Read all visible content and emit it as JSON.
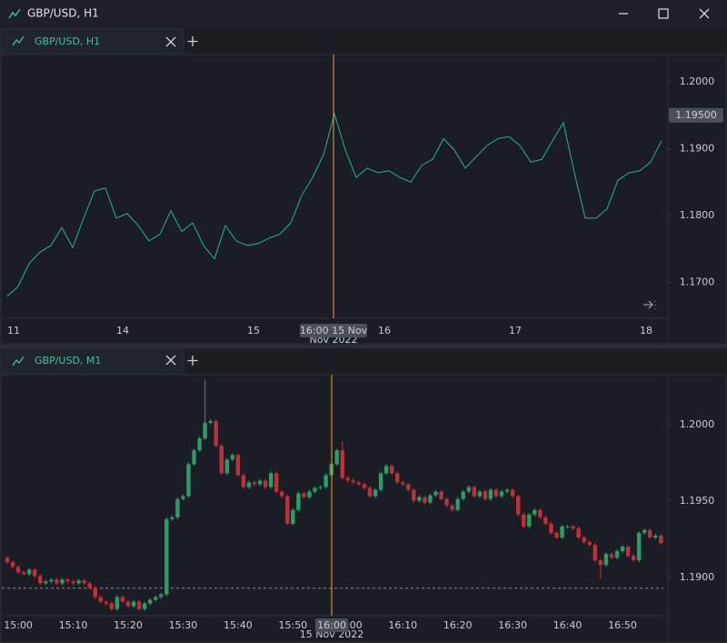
{
  "window": {
    "title": "GBP/USD, H1"
  },
  "tabs": [
    {
      "label": "GBP/USD, H1"
    },
    {
      "label": "GBP/USD, M1"
    }
  ],
  "chart_data": [
    {
      "type": "line",
      "categories": [
        "11",
        null,
        null,
        null,
        null,
        null,
        null,
        null,
        null,
        null,
        "14",
        null,
        null,
        null,
        null,
        null,
        null,
        null,
        null,
        null,
        null,
        null,
        "15",
        null,
        null,
        null,
        null,
        null,
        null,
        null,
        null,
        null,
        null,
        null,
        "16",
        null,
        null,
        null,
        null,
        null,
        null,
        null,
        null,
        null,
        null,
        null,
        "17",
        null,
        null,
        null,
        null,
        null,
        null,
        null,
        null,
        null,
        null,
        null,
        "18",
        null,
        null
      ],
      "values": [
        1.1679,
        1.1694,
        1.1728,
        1.1745,
        1.1755,
        1.1782,
        1.1752,
        1.1796,
        1.1837,
        1.1841,
        1.1796,
        1.1803,
        1.1785,
        1.1762,
        1.1772,
        1.1807,
        1.1776,
        1.1789,
        1.1755,
        1.1735,
        1.1785,
        1.1762,
        1.1755,
        1.1758,
        1.1766,
        1.1772,
        1.1789,
        1.183,
        1.1857,
        1.1891,
        1.1952,
        1.1898,
        1.1857,
        1.1871,
        1.1864,
        1.1867,
        1.1857,
        1.185,
        1.1875,
        1.1884,
        1.1915,
        1.1898,
        1.1871,
        1.1888,
        1.1905,
        1.1915,
        1.1918,
        1.1905,
        1.188,
        1.1884,
        1.1912,
        1.1939,
        1.1864,
        1.1796,
        1.1796,
        1.181,
        1.1853,
        1.1864,
        1.1867,
        1.188,
        1.1912
      ],
      "color": "#2bb38a",
      "ylim": [
        1.1646,
        1.2041
      ],
      "yticks": [
        {
          "value": 1.2,
          "label": "1.2000"
        },
        {
          "value": 1.19,
          "label": "1.1900"
        },
        {
          "value": 1.18,
          "label": "1.1800"
        },
        {
          "value": 1.17,
          "label": "1.1700"
        }
      ],
      "crosshair": {
        "label": "16:00 15 Nov",
        "sublabel": "Nov 2022",
        "price": {
          "value": 1.195,
          "label": "1.19500"
        }
      }
    },
    {
      "type": "candlestick",
      "categories": [
        null,
        null,
        "15:00",
        null,
        null,
        null,
        null,
        null,
        null,
        null,
        null,
        null,
        "15:10",
        null,
        null,
        null,
        null,
        null,
        null,
        null,
        null,
        null,
        "15:20",
        null,
        null,
        null,
        null,
        null,
        null,
        null,
        null,
        null,
        "15:30",
        null,
        null,
        null,
        null,
        null,
        null,
        null,
        null,
        null,
        "15:40",
        null,
        null,
        null,
        null,
        null,
        null,
        null,
        null,
        null,
        "15:50",
        null,
        null,
        null,
        null,
        null,
        null,
        null,
        null,
        null,
        "16:00",
        null,
        null,
        null,
        null,
        null,
        null,
        null,
        null,
        null,
        "16:10",
        null,
        null,
        null,
        null,
        null,
        null,
        null,
        null,
        null,
        "16:20",
        null,
        null,
        null,
        null,
        null,
        null,
        null,
        null,
        null,
        "16:30",
        null,
        null,
        null,
        null,
        null,
        null,
        null,
        null,
        null,
        "16:40",
        null,
        null,
        null,
        null,
        null,
        null,
        null,
        null,
        null,
        "16:50",
        null,
        null,
        null,
        null,
        null,
        null,
        null
      ],
      "open": [
        1.1913,
        1.191,
        1.1907,
        1.19034,
        1.19022,
        1.19052,
        1.1901,
        1.18962,
        1.18974,
        1.18986,
        1.18962,
        1.18986,
        1.18974,
        1.18962,
        1.1898,
        1.18962,
        1.18932,
        1.18872,
        1.18842,
        1.1883,
        1.18794,
        1.18872,
        1.18842,
        1.18812,
        1.18842,
        1.18794,
        1.1883,
        1.18854,
        1.18872,
        1.1889,
        1.19382,
        1.19394,
        1.19514,
        1.19532,
        1.19742,
        1.19832,
        1.1991,
        1.20012,
        1.20024,
        1.19862,
        1.19682,
        1.19772,
        1.19802,
        1.1967,
        1.19592,
        1.19622,
        1.1961,
        1.19634,
        1.19592,
        1.19682,
        1.19562,
        1.19532,
        1.19352,
        1.19442,
        1.1955,
        1.19526,
        1.19562,
        1.19586,
        1.19592,
        1.1967,
        1.19742,
        1.19832,
        1.19652,
        1.19634,
        1.19622,
        1.1961,
        1.19586,
        1.19532,
        1.19574,
        1.19682,
        1.1973,
        1.19682,
        1.19622,
        1.1961,
        1.19574,
        1.19502,
        1.19526,
        1.1949,
        1.19538,
        1.19562,
        1.19514,
        1.19472,
        1.19442,
        1.19514,
        1.19562,
        1.19592,
        1.19532,
        1.19562,
        1.19514,
        1.19574,
        1.19532,
        1.19562,
        1.19574,
        1.19532,
        1.19412,
        1.19334,
        1.19412,
        1.19442,
        1.19394,
        1.19352,
        1.19292,
        1.19262,
        1.19334,
        1.19334,
        1.19322,
        1.19262,
        1.19232,
        1.19214,
        1.19112,
        1.19082,
        1.19154,
        1.1913,
        1.19172,
        1.19202,
        1.19142,
        1.19112,
        1.19292,
        1.1931,
        1.19262,
        1.19274
      ],
      "high": [
        1.19142,
        1.19112,
        1.19082,
        1.19046,
        1.19064,
        1.19064,
        1.19022,
        1.18986,
        1.18998,
        1.18998,
        1.18998,
        1.18998,
        1.18986,
        1.18992,
        1.18992,
        1.18974,
        1.18944,
        1.18884,
        1.18854,
        1.18842,
        1.18884,
        1.18884,
        1.18854,
        1.18854,
        1.18854,
        1.18842,
        1.18866,
        1.18884,
        1.18902,
        1.19394,
        1.19406,
        1.19526,
        1.19544,
        1.19754,
        1.19844,
        1.19922,
        1.20294,
        1.20036,
        1.20036,
        1.19874,
        1.19784,
        1.19814,
        1.19814,
        1.19682,
        1.19634,
        1.19634,
        1.19646,
        1.19646,
        1.19694,
        1.19694,
        1.19574,
        1.19544,
        1.19454,
        1.19562,
        1.19562,
        1.19574,
        1.19598,
        1.19604,
        1.19682,
        1.19754,
        1.19844,
        1.19892,
        1.19664,
        1.19646,
        1.19634,
        1.19622,
        1.19598,
        1.19586,
        1.19694,
        1.19742,
        1.19742,
        1.19694,
        1.19634,
        1.19622,
        1.19586,
        1.19538,
        1.19538,
        1.1955,
        1.19574,
        1.19574,
        1.19526,
        1.19484,
        1.19526,
        1.19574,
        1.19604,
        1.19604,
        1.19574,
        1.19574,
        1.19586,
        1.19586,
        1.19574,
        1.19586,
        1.19586,
        1.19544,
        1.19424,
        1.19424,
        1.19454,
        1.19454,
        1.19406,
        1.19364,
        1.19304,
        1.19346,
        1.19346,
        1.19346,
        1.19334,
        1.19274,
        1.19244,
        1.19226,
        1.19124,
        1.19166,
        1.19166,
        1.19184,
        1.19214,
        1.19214,
        1.19154,
        1.19304,
        1.19322,
        1.19322,
        1.19286,
        1.19286
      ],
      "low": [
        1.19088,
        1.19058,
        1.19022,
        1.1901,
        1.1901,
        1.18998,
        1.1895,
        1.1895,
        1.18962,
        1.1895,
        1.1895,
        1.18962,
        1.1895,
        1.1895,
        1.1895,
        1.1892,
        1.1886,
        1.1883,
        1.18818,
        1.18782,
        1.18782,
        1.1883,
        1.188,
        1.188,
        1.18782,
        1.18782,
        1.18818,
        1.18842,
        1.1886,
        1.18878,
        1.1937,
        1.19382,
        1.19502,
        1.1952,
        1.1973,
        1.1982,
        1.19898,
        1.2,
        1.1985,
        1.1967,
        1.1967,
        1.1976,
        1.19658,
        1.1958,
        1.1958,
        1.19598,
        1.19598,
        1.1958,
        1.1958,
        1.1955,
        1.1952,
        1.1934,
        1.1934,
        1.1943,
        1.19514,
        1.19514,
        1.1955,
        1.19574,
        1.1958,
        1.19658,
        1.1973,
        1.1964,
        1.19622,
        1.1961,
        1.19598,
        1.19574,
        1.1952,
        1.1952,
        1.19562,
        1.1967,
        1.1967,
        1.1961,
        1.19598,
        1.19562,
        1.1949,
        1.1949,
        1.19478,
        1.19478,
        1.19526,
        1.19502,
        1.1946,
        1.1943,
        1.1943,
        1.19502,
        1.1955,
        1.1952,
        1.1952,
        1.19502,
        1.19502,
        1.1952,
        1.1952,
        1.1955,
        1.1952,
        1.194,
        1.19322,
        1.19322,
        1.194,
        1.19382,
        1.1934,
        1.1928,
        1.1925,
        1.1925,
        1.19322,
        1.1931,
        1.1925,
        1.1922,
        1.19202,
        1.191,
        1.18992,
        1.1907,
        1.19118,
        1.19118,
        1.1916,
        1.1913,
        1.191,
        1.191,
        1.1928,
        1.1925,
        1.1925,
        1.19214
      ],
      "close": [
        1.191,
        1.1907,
        1.19034,
        1.19022,
        1.19052,
        1.1901,
        1.18962,
        1.18974,
        1.18986,
        1.18962,
        1.18986,
        1.18974,
        1.18962,
        1.1898,
        1.18962,
        1.18932,
        1.18872,
        1.18842,
        1.1883,
        1.18794,
        1.18872,
        1.18842,
        1.18812,
        1.18842,
        1.18794,
        1.1883,
        1.18854,
        1.18872,
        1.1889,
        1.19382,
        1.19394,
        1.19514,
        1.19532,
        1.19742,
        1.19832,
        1.1991,
        1.20012,
        1.20024,
        1.19862,
        1.19682,
        1.19772,
        1.19802,
        1.1967,
        1.19592,
        1.19622,
        1.1961,
        1.19634,
        1.19592,
        1.19682,
        1.19562,
        1.19532,
        1.19352,
        1.19442,
        1.1955,
        1.19526,
        1.19562,
        1.19586,
        1.19592,
        1.1967,
        1.19742,
        1.19832,
        1.19652,
        1.19634,
        1.19622,
        1.1961,
        1.19586,
        1.19532,
        1.19574,
        1.19682,
        1.1973,
        1.19682,
        1.19622,
        1.1961,
        1.19574,
        1.19502,
        1.19526,
        1.1949,
        1.19538,
        1.19562,
        1.19514,
        1.19472,
        1.19442,
        1.19514,
        1.19562,
        1.19592,
        1.19532,
        1.19562,
        1.19514,
        1.19574,
        1.19532,
        1.19562,
        1.19574,
        1.19532,
        1.19412,
        1.19334,
        1.19412,
        1.19442,
        1.19394,
        1.19352,
        1.19292,
        1.19262,
        1.19334,
        1.19334,
        1.19322,
        1.19262,
        1.19232,
        1.19214,
        1.19112,
        1.19082,
        1.19154,
        1.1913,
        1.19172,
        1.19202,
        1.19142,
        1.19112,
        1.19292,
        1.1931,
        1.19262,
        1.19274,
        1.19226
      ],
      "up_color": "#2a9d68",
      "down_color": "#c0303c",
      "ylim": [
        1.1875,
        1.20327
      ],
      "yticks": [
        {
          "value": 1.2,
          "label": "1.2000"
        },
        {
          "value": 1.195,
          "label": "1.1950"
        },
        {
          "value": 1.19,
          "label": "1.1900"
        }
      ],
      "price_line": 1.1893,
      "crosshair": {
        "label": "16:00",
        "sublabel": "15 Nov 2022"
      }
    }
  ]
}
